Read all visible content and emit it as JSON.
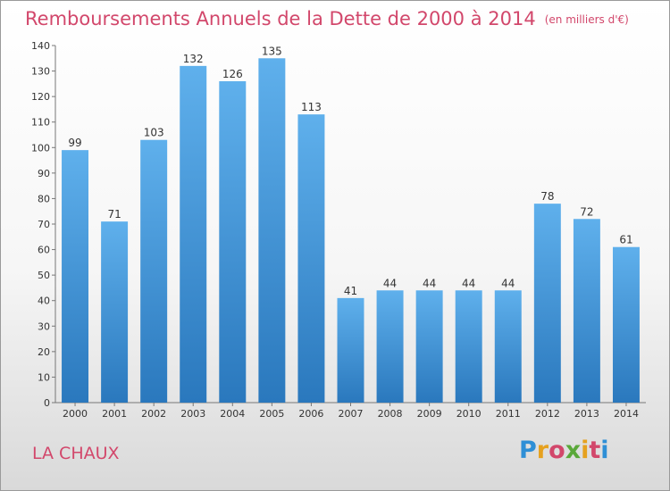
{
  "header": {
    "title": "Remboursements Annuels de la Dette de 2000 à 2014",
    "subtitle": "(en milliers d'€)"
  },
  "footer": {
    "commune": "LA CHAUX",
    "logo_letters": [
      "P",
      "r",
      "o",
      "x",
      "i",
      "t",
      "i"
    ],
    "logo_colors": [
      "#2e8fd6",
      "#e6a11f",
      "#d2476b",
      "#5aa83a",
      "#e6a11f",
      "#d2476b",
      "#2e8fd6"
    ]
  },
  "colors": {
    "bar_top": "#5fb0ec",
    "bar_bottom": "#2a78bd",
    "accent": "#d2476b"
  },
  "chart_data": {
    "type": "bar",
    "categories": [
      "2000",
      "2001",
      "2002",
      "2003",
      "2004",
      "2005",
      "2006",
      "2007",
      "2008",
      "2009",
      "2010",
      "2011",
      "2012",
      "2013",
      "2014"
    ],
    "values": [
      99,
      71,
      103,
      132,
      126,
      135,
      113,
      41,
      44,
      44,
      44,
      44,
      78,
      72,
      61
    ],
    "title": "Remboursements Annuels de la Dette de 2000 à 2014",
    "subtitle": "(en milliers d'€)",
    "xlabel": "",
    "ylabel": "",
    "ylim": [
      0,
      140
    ],
    "yticks": [
      0,
      10,
      20,
      30,
      40,
      50,
      60,
      70,
      80,
      90,
      100,
      110,
      120,
      130,
      140
    ],
    "grid": false,
    "legend": "none"
  }
}
